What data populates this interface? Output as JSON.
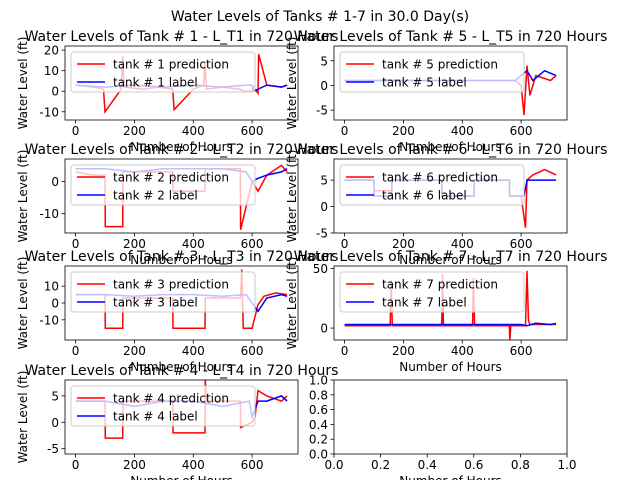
{
  "figure": {
    "suptitle": "Water Levels of Tanks # 1-7 in 30.0 Day(s)"
  },
  "colors": {
    "prediction": "#ff0000",
    "label": "#0000ff",
    "legend_border": "#cccccc"
  },
  "chart_data": [
    {
      "type": "line",
      "title": "Water Levels of Tank # 1 - L_T1 in 720 Hours",
      "xlabel": "Number of Hours",
      "ylabel": "Water Level (ft)",
      "xlim": [
        -36,
        756
      ],
      "ylim": [
        -14,
        22
      ],
      "xticks": [
        0,
        200,
        400,
        600
      ],
      "yticks": [
        -10,
        0,
        10,
        20
      ],
      "legend_position": "upper left",
      "series": [
        {
          "name": "tank # 1 prediction",
          "color": "#ff0000",
          "x": [
            0,
            60,
            95,
            100,
            155,
            160,
            165,
            230,
            280,
            330,
            335,
            400,
            435,
            440,
            445,
            500,
            560,
            570,
            600,
            605,
            620,
            622,
            650,
            700,
            719
          ],
          "y": [
            3,
            2,
            1,
            -10,
            1,
            17,
            2,
            1,
            2,
            1,
            -9,
            1,
            3,
            14,
            1,
            2,
            1,
            0,
            0,
            2,
            -1,
            18,
            3,
            2,
            3
          ]
        },
        {
          "name": "tank # 1 label",
          "color": "#0000ff",
          "x": [
            0,
            100,
            200,
            300,
            400,
            500,
            580,
            600,
            605,
            650,
            700,
            719
          ],
          "y": [
            3,
            2,
            3,
            2,
            3,
            2,
            3,
            3,
            0,
            3,
            2,
            3
          ]
        }
      ]
    },
    {
      "type": "line",
      "title": "Water Levels of Tank # 5 - L_T5 in 720 Hours",
      "xlabel": "Number of Hours",
      "ylabel": "Water Level (ft)",
      "xlim": [
        -36,
        756
      ],
      "ylim": [
        -7,
        8
      ],
      "xticks": [
        0,
        200,
        400,
        600
      ],
      "yticks": [
        -5,
        0,
        5
      ],
      "legend_position": "upper left",
      "series": [
        {
          "name": "tank # 5 prediction",
          "color": "#ff0000",
          "x": [
            0,
            100,
            200,
            300,
            400,
            500,
            580,
            600,
            610,
            620,
            630,
            650,
            700,
            719
          ],
          "y": [
            1,
            1,
            1,
            1,
            1,
            1,
            1,
            0,
            -6,
            4,
            -2,
            2,
            1,
            2
          ]
        },
        {
          "name": "tank # 5 label",
          "color": "#0000ff",
          "x": [
            0,
            100,
            200,
            300,
            400,
            500,
            580,
            600,
            620,
            640,
            680,
            719
          ],
          "y": [
            1,
            1,
            1,
            1,
            1,
            1,
            1,
            2,
            3,
            1,
            3,
            2
          ]
        }
      ]
    },
    {
      "type": "line",
      "title": "Water Levels of Tank # 2 - L_T2 in 720 Hours",
      "xlabel": "Number of Hours",
      "ylabel": "Water Level (ft)",
      "xlim": [
        -36,
        756
      ],
      "ylim": [
        -16,
        7
      ],
      "xticks": [
        0,
        200,
        400,
        600
      ],
      "yticks": [
        -10,
        0
      ],
      "legend_position": "upper left",
      "series": [
        {
          "name": "tank # 2 prediction",
          "color": "#ff0000",
          "x": [
            0,
            60,
            100,
            101,
            160,
            161,
            240,
            330,
            331,
            440,
            441,
            560,
            561,
            600,
            620,
            650,
            700,
            719
          ],
          "y": [
            3,
            2,
            2,
            -14,
            -14,
            3,
            3,
            3,
            -3,
            -3,
            4,
            4,
            -15,
            0,
            -3,
            2,
            5,
            3
          ]
        },
        {
          "name": "tank # 2 label",
          "color": "#0000ff",
          "x": [
            0,
            100,
            200,
            300,
            400,
            500,
            580,
            600,
            620,
            650,
            700,
            719
          ],
          "y": [
            4,
            4,
            3,
            4,
            4,
            4,
            3,
            0,
            1,
            2,
            3,
            4
          ]
        }
      ]
    },
    {
      "type": "line",
      "title": "Water Levels of Tank # 6 - L_T6 in 720 Hours",
      "xlabel": "Number of Hours",
      "ylabel": "Water Level (ft)",
      "xlim": [
        -36,
        756
      ],
      "ylim": [
        -5,
        9
      ],
      "xticks": [
        0,
        200,
        400,
        600
      ],
      "yticks": [
        -5,
        0,
        5
      ],
      "legend_position": "upper left",
      "series": [
        {
          "name": "tank # 6 prediction",
          "color": "#ff0000",
          "x": [
            0,
            100,
            101,
            160,
            161,
            330,
            331,
            440,
            441,
            560,
            561,
            600,
            615,
            620,
            640,
            680,
            719
          ],
          "y": [
            5,
            5,
            3,
            3,
            5,
            5,
            2,
            2,
            5,
            5,
            2,
            2,
            -4,
            5,
            6,
            7,
            6
          ]
        },
        {
          "name": "tank # 6 label",
          "color": "#0000ff",
          "x": [
            0,
            100,
            101,
            160,
            161,
            330,
            331,
            440,
            441,
            560,
            561,
            610,
            620,
            719
          ],
          "y": [
            5,
            5,
            2,
            2,
            5,
            5,
            2,
            2,
            5,
            5,
            2,
            2,
            5,
            5
          ]
        }
      ]
    },
    {
      "type": "line",
      "title": "Water Levels of Tank # 3 - L_T3 in 720 Hours",
      "xlabel": "Number of Hours",
      "ylabel": "Water Level (ft)",
      "xlim": [
        -36,
        756
      ],
      "ylim": [
        -22,
        22
      ],
      "xticks": [
        0,
        200,
        400,
        600
      ],
      "yticks": [
        -10,
        0,
        10
      ],
      "legend_position": "upper left",
      "series": [
        {
          "name": "tank # 3 prediction",
          "color": "#ff0000",
          "x": [
            0,
            60,
            100,
            101,
            160,
            161,
            330,
            331,
            440,
            441,
            560,
            565,
            570,
            600,
            620,
            640,
            680,
            719
          ],
          "y": [
            5,
            5,
            5,
            -15,
            -15,
            3,
            3,
            -15,
            -15,
            3,
            3,
            20,
            -15,
            -15,
            -1,
            4,
            6,
            5
          ]
        },
        {
          "name": "tank # 3 label",
          "color": "#0000ff",
          "x": [
            0,
            100,
            200,
            300,
            400,
            500,
            580,
            600,
            620,
            650,
            700,
            719
          ],
          "y": [
            5,
            5,
            4,
            5,
            5,
            4,
            5,
            0,
            -5,
            3,
            5,
            4
          ]
        }
      ]
    },
    {
      "type": "line",
      "title": "Water Levels of Tank # 7 - L_T7 in 720 Hours",
      "xlabel": "Number of Hours",
      "ylabel": "Water Level (ft)",
      "xlim": [
        -36,
        756
      ],
      "ylim": [
        -10,
        52
      ],
      "xticks": [
        0,
        200,
        400,
        600
      ],
      "yticks": [
        0,
        50
      ],
      "legend_position": "upper left",
      "series": [
        {
          "name": "tank # 7 prediction",
          "color": "#ff0000",
          "x": [
            0,
            100,
            155,
            158,
            162,
            300,
            330,
            333,
            336,
            420,
            435,
            438,
            442,
            560,
            562,
            565,
            600,
            615,
            620,
            625,
            630,
            680,
            719
          ],
          "y": [
            2,
            2,
            2,
            40,
            2,
            2,
            2,
            45,
            2,
            2,
            2,
            42,
            2,
            2,
            -10,
            2,
            2,
            2,
            48,
            6,
            3,
            3,
            3
          ]
        },
        {
          "name": "tank # 7 label",
          "color": "#0000ff",
          "x": [
            0,
            100,
            200,
            300,
            400,
            500,
            600,
            620,
            650,
            700,
            719
          ],
          "y": [
            3,
            3,
            3,
            3,
            3,
            3,
            3,
            2,
            4,
            3,
            4
          ]
        }
      ]
    },
    {
      "type": "line",
      "title": "Water Levels of Tank # 4 - L_T4 in 720 Hours",
      "xlabel": "Number of Hours",
      "ylabel": "Water Level (ft)",
      "xlim": [
        -36,
        756
      ],
      "ylim": [
        -6,
        8
      ],
      "xticks": [
        0,
        200,
        400,
        600
      ],
      "yticks": [
        -5,
        0,
        5
      ],
      "legend_position": "upper left",
      "series": [
        {
          "name": "tank # 4 prediction",
          "color": "#ff0000",
          "x": [
            0,
            60,
            100,
            101,
            160,
            161,
            330,
            331,
            440,
            441,
            445,
            448,
            560,
            561,
            600,
            610,
            620,
            650,
            700,
            719
          ],
          "y": [
            4,
            4,
            4,
            -3,
            -3,
            4,
            4,
            -2,
            -2,
            8,
            4,
            4,
            4,
            -1,
            0,
            1,
            6,
            5,
            4,
            5
          ]
        },
        {
          "name": "tank # 4 label",
          "color": "#0000ff",
          "x": [
            0,
            100,
            200,
            300,
            400,
            500,
            590,
            600,
            620,
            650,
            700,
            719
          ],
          "y": [
            4,
            4,
            3,
            4,
            4,
            3,
            4,
            1,
            4,
            4,
            5,
            4
          ]
        }
      ]
    },
    {
      "type": "line",
      "title": "",
      "xlabel": "Number of Hours",
      "ylabel": "",
      "xlim": [
        0,
        1
      ],
      "ylim": [
        0,
        1
      ],
      "xticks": [
        0.0,
        0.2,
        0.4,
        0.6,
        0.8,
        1.0
      ],
      "yticks": [
        0.0,
        0.2,
        0.4,
        0.6,
        0.8,
        1.0
      ],
      "tick_decimals": 1,
      "series": []
    }
  ]
}
